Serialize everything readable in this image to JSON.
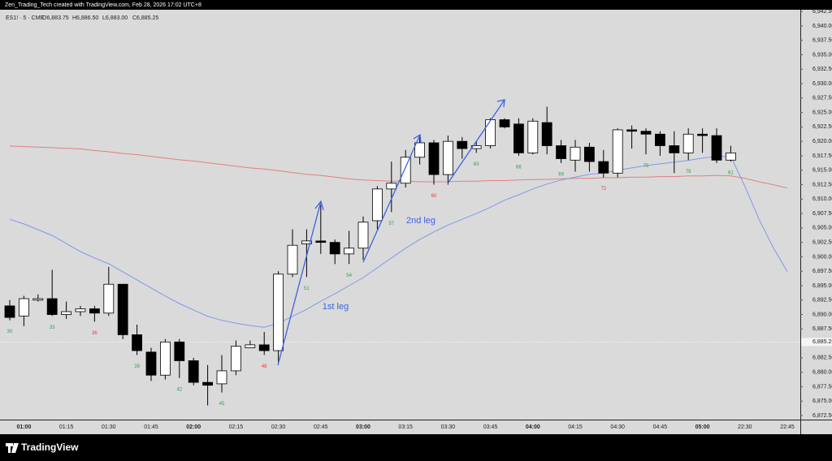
{
  "chart_data": {
    "type": "candlestick",
    "credit": "Zen_Trading_Tech created with TradingView.com, Feb 28, 2026 17:02 UTC+8",
    "symbol": "ES1! · 5 · CME",
    "ohlc_legend": [
      "O6,883.75",
      "H6,886.50",
      "L6,883.00",
      "C6,885.25"
    ],
    "brand": "TradingView",
    "annotations": [
      "1st leg",
      "2nd leg"
    ],
    "categories": [
      null,
      "01:00",
      null,
      null,
      "01:15",
      null,
      null,
      "01:30",
      null,
      null,
      "01:45",
      null,
      null,
      "02:00",
      null,
      null,
      "02:15",
      null,
      null,
      "02:30",
      null,
      null,
      "02:45",
      null,
      null,
      "03:00",
      null,
      null,
      "03:15",
      null,
      null,
      "03:30",
      null,
      null,
      "03:45",
      null,
      null,
      "04:00",
      null,
      null,
      "04:15",
      null,
      null,
      "04:30",
      null,
      null,
      "04:45",
      null,
      null,
      "05:00",
      null,
      null,
      "22:30",
      null,
      null,
      "22:45"
    ],
    "open": [
      6891.5,
      6889.75,
      6892.5,
      6892.75,
      6890,
      6890.5,
      6891,
      6890.25,
      6895.25,
      6886.5,
      6883.5,
      6879.5,
      6885.25,
      6882,
      6878.25,
      6878,
      6880.25,
      6884.25,
      6884.75,
      6883.75,
      6897,
      6902.25,
      6902.75,
      6902.5,
      6900.5,
      6901.5,
      6906.25,
      6911.75,
      6912.75,
      6917.25,
      6919.75,
      6914.25,
      6920,
      6918.75,
      6919.25,
      6923.75,
      6923,
      6918,
      6923.25,
      6919.25,
      6916.75,
      6919,
      6916.5,
      6914.5,
      6922,
      6921.75,
      6921.25,
      6919.25,
      6918,
      6921.25,
      6921,
      6916.75,
      null,
      null,
      null,
      null
    ],
    "high": [
      6892.5,
      6893.25,
      6893.5,
      6897.75,
      6892.25,
      6891.5,
      6891.5,
      6898.25,
      6895.25,
      6888.25,
      6884.25,
      6885.75,
      6885.75,
      6882.5,
      6881.25,
      6883,
      6885.5,
      6885.5,
      6887,
      6897.5,
      6904.75,
      6904.75,
      6909,
      6903,
      6904.5,
      6907,
      6912.25,
      6916.5,
      6918.5,
      6920.75,
      6920.25,
      6921,
      6920.75,
      6920,
      6924,
      6924,
      6924,
      6924,
      6926,
      6920.25,
      6920.25,
      6919.75,
      6918.5,
      6922.25,
      6922.75,
      6922.25,
      6921.75,
      6921.75,
      6922.25,
      6922.25,
      6922.25,
      6919.25,
      null,
      null,
      null,
      null
    ],
    "low": [
      6889,
      6888,
      6892.25,
      6889.75,
      6889.25,
      6889.75,
      6888.75,
      6889.75,
      6885.75,
      6883,
      6878.5,
      6878.75,
      6879,
      6877.75,
      6874.25,
      6876.5,
      6879.5,
      6884.25,
      6883,
      6881.75,
      6896.5,
      6896.5,
      6900.5,
      6898.75,
      6898.75,
      6899.5,
      6904.75,
      6907.75,
      6912,
      6916,
      6912.5,
      6912.5,
      6917,
      6918,
      6918.75,
      6922.25,
      6917.5,
      6917.75,
      6917.75,
      6916.25,
      6914.75,
      6914.75,
      6913.75,
      6913.75,
      6918.75,
      6917.75,
      6917.5,
      6914.5,
      6916.75,
      6918,
      6916.25,
      6916.5,
      null,
      null,
      null,
      null
    ],
    "close": [
      6889.5,
      6892.75,
      6892.75,
      6890,
      6890.5,
      6891,
      6890.25,
      6895.25,
      6886.5,
      6883.75,
      6879.5,
      6885.25,
      6882,
      6878.25,
      6877.75,
      6880.25,
      6884.5,
      6884.75,
      6883.75,
      6897,
      6902,
      6902.75,
      6902.5,
      6900.5,
      6901.5,
      6906,
      6911.75,
      6912.75,
      6917.25,
      6919.75,
      6914.25,
      6920,
      6918.75,
      6919.25,
      6923.75,
      6922.5,
      6918,
      6923.5,
      6919.25,
      6917,
      6919,
      6916.5,
      6914.5,
      6922,
      6921.75,
      6921.25,
      6919.25,
      6918,
      6921.25,
      6921,
      6916.75,
      6918,
      null,
      null,
      null,
      null
    ],
    "up_color": "#ffffff",
    "down_color": "#000000",
    "bar_counts": [
      30,
      null,
      null,
      33,
      null,
      null,
      36,
      null,
      null,
      39,
      null,
      null,
      42,
      null,
      null,
      45,
      null,
      null,
      48,
      null,
      null,
      51,
      null,
      null,
      54,
      null,
      null,
      57,
      null,
      null,
      60,
      null,
      null,
      63,
      null,
      null,
      66,
      null,
      null,
      69,
      null,
      null,
      72,
      null,
      null,
      75,
      null,
      null,
      78,
      null,
      null,
      81,
      null,
      null,
      null,
      null
    ],
    "bar_count_colors": [
      "#2e9e4f",
      null,
      null,
      "#2e9e4f",
      null,
      null,
      "#e53935",
      null,
      null,
      "#2e9e4f",
      null,
      null,
      "#2e9e4f",
      null,
      null,
      "#2e9e4f",
      null,
      null,
      "#e53935",
      null,
      null,
      "#2e9e4f",
      null,
      null,
      "#2e9e4f",
      null,
      null,
      "#2e9e4f",
      null,
      null,
      "#e53935",
      null,
      null,
      "#2e9e4f",
      null,
      null,
      "#2e9e4f",
      null,
      null,
      "#2e9e4f",
      null,
      null,
      "#e53935",
      null,
      null,
      "#2e9e4f",
      null,
      null,
      "#2e9e4f",
      null,
      null,
      "#2e9e4f",
      null,
      null,
      null,
      null
    ],
    "lines": [
      {
        "color": "#e08080",
        "values": [
          6919.2,
          6919.1,
          6919,
          6918.9,
          6918.8,
          6918.7,
          6918.4,
          6918.2,
          6917.9,
          6917.7,
          6917.4,
          6917.1,
          6916.8,
          6916.6,
          6916.3,
          6916,
          6915.7,
          6915.4,
          6915.2,
          6914.9,
          6914.6,
          6914.3,
          6914.1,
          6913.8,
          6913.5,
          6913.3,
          6913.2,
          6913.1,
          6913.1,
          6913,
          6913,
          6913,
          6913.1,
          6913.1,
          6913.2,
          6913.2,
          6913.3,
          6913.4,
          6913.4,
          6913.5,
          6913.6,
          6913.6,
          6913.7,
          6913.7,
          6913.8,
          6913.8,
          6913.9,
          6913.9,
          6914,
          6914,
          6914.1,
          6914,
          6913.6,
          6913,
          6912.5,
          6911.9
        ]
      },
      {
        "color": "#7d9ae6",
        "values": [
          6906.5,
          6905.7,
          6904.7,
          6903.7,
          6902.3,
          6900.9,
          6899.8,
          6898.8,
          6897.4,
          6896,
          6894.6,
          6893.2,
          6891.9,
          6890.8,
          6889.7,
          6889,
          6888.5,
          6888.1,
          6887.8,
          6888.5,
          6889.7,
          6890.9,
          6892.3,
          6893.6,
          6895,
          6896.4,
          6898.1,
          6899.8,
          6901.5,
          6903,
          6904.3,
          6905.5,
          6906.5,
          6907.5,
          6908.6,
          6909.8,
          6910.75,
          6911.75,
          6912.6,
          6913.3,
          6913.8,
          6914.3,
          6914.5,
          6915,
          6915.4,
          6915.8,
          6916.1,
          6916.4,
          6916.7,
          6917.1,
          6917.4,
          6917.4,
          6912.2,
          6906.5,
          6901.6,
          6897.4
        ]
      }
    ],
    "last_price": {
      "value": 6885.25,
      "label": "6,885.25"
    },
    "ylim": [
      6871.8,
      6942.8
    ],
    "yticks": [
      {
        "value": 6872.5,
        "label": "6,872.50"
      },
      {
        "value": 6875,
        "label": "6,875.00"
      },
      {
        "value": 6877.5,
        "label": "6,877.50"
      },
      {
        "value": 6880,
        "label": "6,880.00"
      },
      {
        "value": 6882.5,
        "label": "6,882.50"
      },
      {
        "value": 6887.5,
        "label": "6,887.50"
      },
      {
        "value": 6890,
        "label": "6,890.00"
      },
      {
        "value": 6892.5,
        "label": "6,892.50"
      },
      {
        "value": 6895,
        "label": "6,895.00"
      },
      {
        "value": 6897.5,
        "label": "6,897.50"
      },
      {
        "value": 6900,
        "label": "6,900.00"
      },
      {
        "value": 6902.5,
        "label": "6,902.50"
      },
      {
        "value": 6905,
        "label": "6,905.00"
      },
      {
        "value": 6907.5,
        "label": "6,907.50"
      },
      {
        "value": 6910,
        "label": "6,910.00"
      },
      {
        "value": 6912.5,
        "label": "6,912.50"
      },
      {
        "value": 6915,
        "label": "6,915.00"
      },
      {
        "value": 6917.5,
        "label": "6,917.50"
      },
      {
        "value": 6920,
        "label": "6,920.00"
      },
      {
        "value": 6922.5,
        "label": "6,922.50"
      },
      {
        "value": 6925,
        "label": "6,925.00"
      },
      {
        "value": 6927.5,
        "label": "6,927.50"
      },
      {
        "value": 6930,
        "label": "6,930.00"
      },
      {
        "value": 6932.5,
        "label": "6,932.50"
      },
      {
        "value": 6935,
        "label": "6,935.00"
      },
      {
        "value": 6937.5,
        "label": "6,937.50"
      },
      {
        "value": 6940,
        "label": "6,940.00"
      },
      {
        "value": 6942.5,
        "label": "6,942.50"
      }
    ],
    "grid": false
  }
}
